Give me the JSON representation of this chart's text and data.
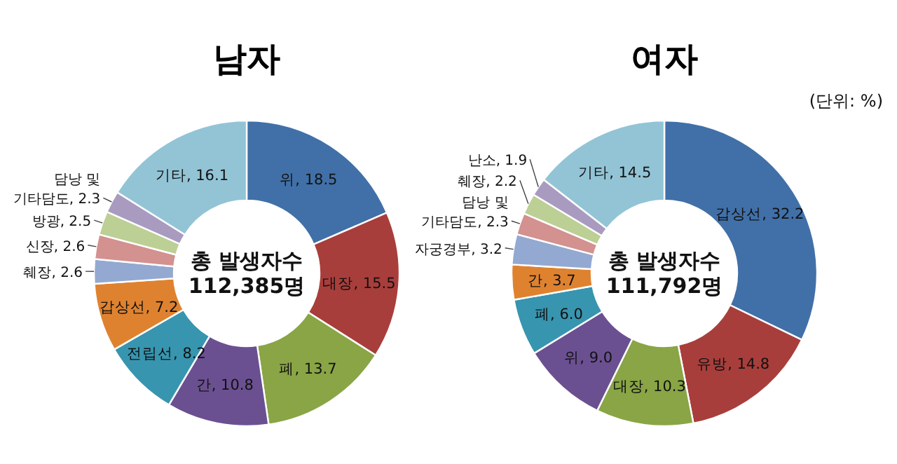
{
  "chart_data": [
    {
      "type": "donut",
      "title": "남자",
      "categories": [
        "위",
        "대장",
        "폐",
        "간",
        "전립선",
        "갑상선",
        "췌장",
        "신장",
        "방광",
        "담낭 및 기타담도",
        "기타"
      ],
      "values": [
        18.5,
        15.5,
        13.7,
        10.8,
        8.2,
        7.2,
        2.6,
        2.6,
        2.5,
        2.3,
        16.1
      ],
      "value_labels": [
        "18.5",
        "15.5",
        "13.7",
        "10.8",
        "8.2",
        "7.2",
        "2.6",
        "2.6",
        "2.5",
        "2.3",
        "16.1"
      ],
      "colors": [
        "#4170A8",
        "#A83E3B",
        "#89A545",
        "#6B5091",
        "#3795AF",
        "#DF822F",
        "#93A9D1",
        "#D3918F",
        "#BCCF95",
        "#A99BC0",
        "#92C4D6"
      ],
      "annotations": [
        "총 발생자수\n112,385명"
      ]
    },
    {
      "type": "donut",
      "title": "여자",
      "categories": [
        "갑상선",
        "유방",
        "대장",
        "위",
        "폐",
        "간",
        "자궁경부",
        "담낭 및 기타담도",
        "췌장",
        "난소",
        "기타"
      ],
      "values": [
        32.2,
        14.8,
        10.3,
        9.0,
        6.0,
        3.7,
        3.2,
        2.3,
        2.2,
        1.9,
        14.5
      ],
      "value_labels": [
        "32.2",
        "14.8",
        "10.3",
        "9.0",
        "6.0",
        "3.7",
        "3.2",
        "2.3",
        "2.2",
        "1.9",
        "14.5"
      ],
      "colors": [
        "#4170A8",
        "#A83E3B",
        "#89A545",
        "#6B5091",
        "#3795AF",
        "#DF822F",
        "#93A9D1",
        "#D3918F",
        "#BCCF95",
        "#A99BC0",
        "#92C4D6"
      ],
      "annotations": [
        "총 발생자수\n111,792명",
        "(단위: %)"
      ]
    }
  ]
}
